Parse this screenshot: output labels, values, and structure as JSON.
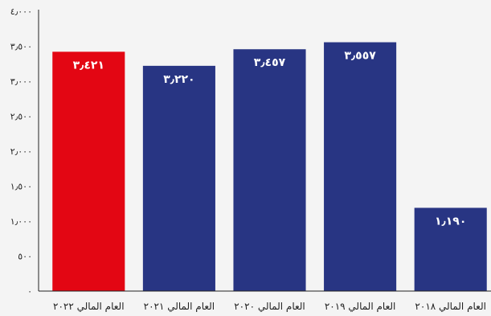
{
  "chart_data": {
    "type": "bar",
    "categories": [
      "العام المالي ٢٠٢٢",
      "العام المالي ٢٠٢١",
      "العام المالي ٢٠٢٠",
      "العام المالي ٢٠١٩",
      "العام المالي ٢٠١٨"
    ],
    "values": [
      3421,
      3220,
      3457,
      3557,
      1190
    ],
    "value_labels": [
      "٣٫٤٢١",
      "٣٫٢٢٠",
      "٣٫٤٥٧",
      "٣٫٥٥٧",
      "١٫١٩٠"
    ],
    "ytick_values": [
      0,
      500,
      1000,
      1500,
      2000,
      2500,
      3000,
      3500,
      4000
    ],
    "ytick_labels": [
      "٠",
      "٥٠٠",
      "١٫٠٠٠",
      "١٫٥٠٠",
      "٢٫٠٠٠",
      "٢٫٥٠٠",
      "٣٫٠٠٠",
      "٣٫٥٠٠",
      "٤٫٠٠٠"
    ],
    "ylim": [
      0,
      4000
    ],
    "title": "",
    "xlabel": "",
    "ylabel": "",
    "grid": false,
    "colors": {
      "highlight": "#e30613",
      "default": "#283583",
      "axis": "#222222",
      "background": "#f4f4f4"
    },
    "highlight_index": 0
  }
}
